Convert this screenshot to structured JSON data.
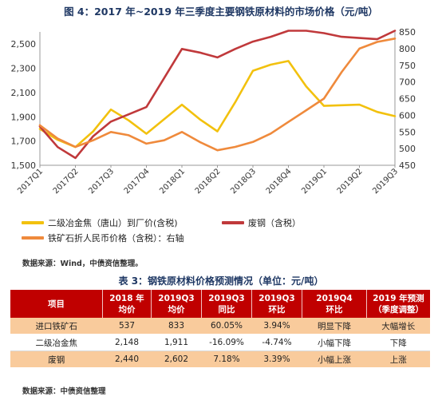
{
  "title": "图 4：2017 年~2019 年三季度主要钢铁原材料的市场价格（元/吨）",
  "chart_data": {
    "type": "line",
    "categories": [
      "2017Q1",
      "2017Q2",
      "2017Q3",
      "2017Q4",
      "2018Q1",
      "2018Q2",
      "2018Q3",
      "2018Q4",
      "2019Q1",
      "2019Q2",
      "2019Q3"
    ],
    "x": [
      "2017Q1",
      "2017Q1b",
      "2017Q2",
      "2017Q2b",
      "2017Q3",
      "2017Q3b",
      "2017Q4",
      "2017Q4b",
      "2018Q1",
      "2018Q1b",
      "2018Q2",
      "2018Q2b",
      "2018Q3",
      "2018Q3b",
      "2018Q4",
      "2018Q4b",
      "2019Q1",
      "2019Q1b",
      "2019Q2",
      "2019Q2b",
      "2019Q3"
    ],
    "left_axis": {
      "ylim": [
        1500,
        2600
      ],
      "ticks": [
        1500,
        1700,
        1900,
        2100,
        2300,
        2500
      ],
      "tick_labels": [
        "1,500",
        "1,700",
        "1,900",
        "2,100",
        "2,300",
        "2,500"
      ]
    },
    "right_axis": {
      "ylim": [
        450,
        850
      ],
      "ticks": [
        450,
        500,
        550,
        600,
        650,
        700,
        750,
        800,
        850
      ],
      "tick_labels": [
        "450",
        "500",
        "550",
        "600",
        "650",
        "700",
        "750",
        "800",
        "850"
      ]
    },
    "series": [
      {
        "name": "二级冶金焦（唐山）到厂价(含税)",
        "axis": "left",
        "color": "#f2c10e",
        "values": [
          1800,
          1710,
          1650,
          1780,
          1960,
          1870,
          1760,
          1880,
          2000,
          1880,
          1780,
          2020,
          2280,
          2330,
          2360,
          2150,
          1990,
          1995,
          2000,
          1940,
          1905
        ]
      },
      {
        "name": "废钢（含税）",
        "axis": "left",
        "color": "#c0393b",
        "values": [
          1820,
          1650,
          1560,
          1740,
          1860,
          1920,
          1980,
          2220,
          2460,
          2430,
          2390,
          2460,
          2520,
          2560,
          2610,
          2610,
          2590,
          2560,
          2550,
          2540,
          2610
        ]
      },
      {
        "name": "铁矿石折人民币价格（含税）：右轴",
        "axis": "right",
        "color": "#ef8a3c",
        "values": [
          570,
          530,
          505,
          525,
          550,
          540,
          515,
          525,
          550,
          520,
          495,
          505,
          520,
          545,
          580,
          615,
          650,
          730,
          800,
          820,
          830
        ]
      }
    ],
    "grid": false,
    "legend": "bottom"
  },
  "source1": "数据来源：Wind，中债资信整理。",
  "table": {
    "title": "表 3：钢铁原材料价格预测情况（单位：元/吨）",
    "headers": [
      [
        "项目"
      ],
      [
        "2018 年",
        "均价"
      ],
      [
        "2019Q3",
        "均价"
      ],
      [
        "2019Q3",
        "同比"
      ],
      [
        "2019Q3",
        "环比"
      ],
      [
        "2019Q4",
        "环比"
      ],
      [
        "2019 年预测",
        "（季度调整）"
      ]
    ],
    "rows": [
      [
        "进口铁矿石",
        "537",
        "833",
        "60.05%",
        "3.94%",
        "明显下降",
        "大幅增长"
      ],
      [
        "二级冶金焦",
        "2,148",
        "1,911",
        "-16.09%",
        "-4.74%",
        "小幅下降",
        "下降"
      ],
      [
        "废钢",
        "2,440",
        "2,602",
        "7.18%",
        "3.39%",
        "小幅上涨",
        "上涨"
      ]
    ]
  },
  "source2": "数据来源：中债资信整理"
}
